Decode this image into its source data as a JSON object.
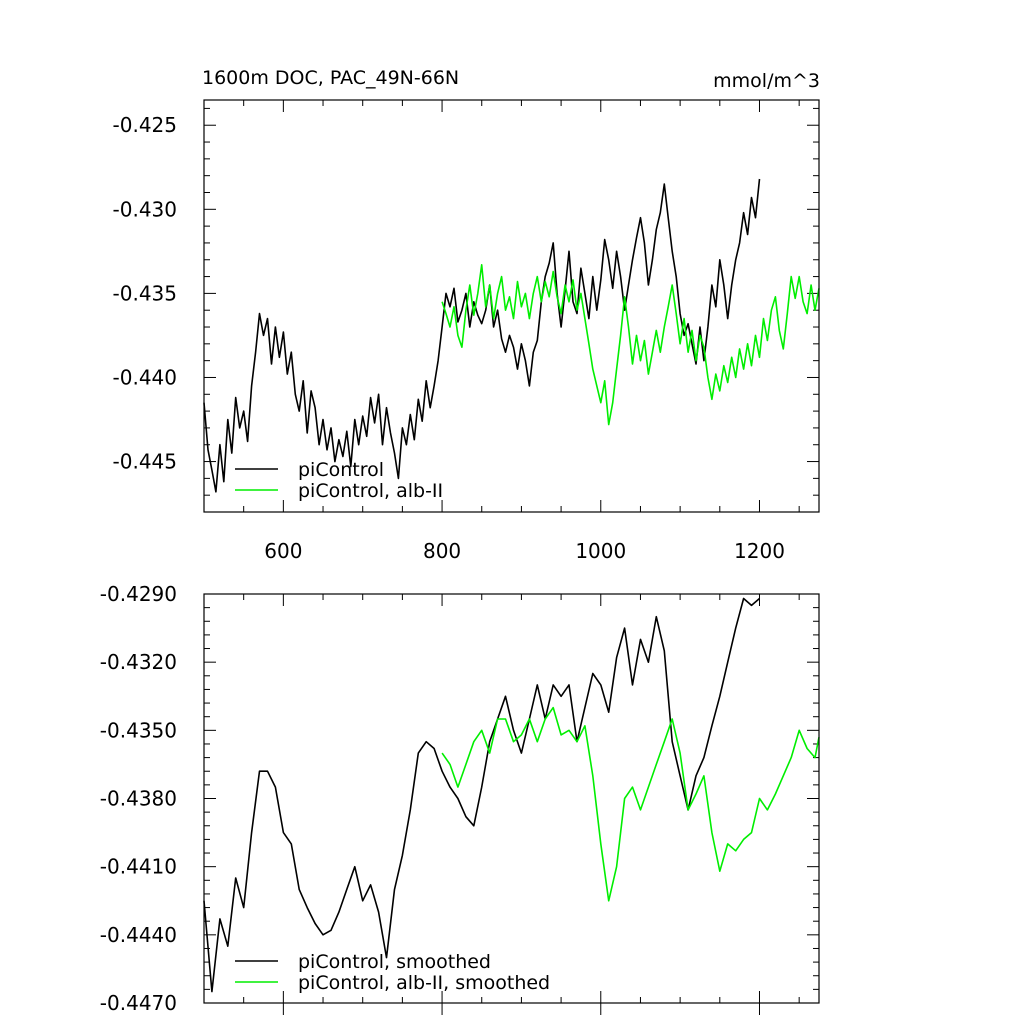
{
  "chart_data": [
    {
      "type": "line",
      "title": "1600m DOC, PAC_49N-66N",
      "units": "mmol/m^3",
      "xlabel": "",
      "ylabel": "",
      "xlim": [
        500,
        1275
      ],
      "ylim": [
        -0.448,
        -0.4235
      ],
      "xticks": [
        600,
        800,
        1000,
        1200
      ],
      "xtick_labels": [
        "600",
        "800",
        "1000",
        "1200"
      ],
      "yticks": [
        -0.425,
        -0.43,
        -0.435,
        -0.44,
        -0.445
      ],
      "ytick_labels": [
        "-0.425",
        "-0.430",
        "-0.435",
        "-0.440",
        "-0.445"
      ],
      "legend": {
        "placement": "bottom-left",
        "entries": [
          "piControl",
          "piControl, alb-II"
        ]
      },
      "series": [
        {
          "name": "piControl",
          "color": "#000000",
          "x": [
            500,
            505,
            510,
            515,
            520,
            525,
            530,
            535,
            540,
            545,
            550,
            555,
            560,
            565,
            570,
            575,
            580,
            585,
            590,
            595,
            600,
            605,
            610,
            615,
            620,
            625,
            630,
            635,
            640,
            645,
            650,
            655,
            660,
            665,
            670,
            675,
            680,
            685,
            690,
            695,
            700,
            705,
            710,
            715,
            720,
            725,
            730,
            735,
            740,
            745,
            750,
            755,
            760,
            765,
            770,
            775,
            780,
            785,
            790,
            795,
            800,
            805,
            810,
            815,
            820,
            825,
            830,
            835,
            840,
            845,
            850,
            855,
            860,
            865,
            870,
            875,
            880,
            885,
            890,
            895,
            900,
            905,
            910,
            915,
            920,
            925,
            930,
            935,
            940,
            945,
            950,
            955,
            960,
            965,
            970,
            975,
            980,
            985,
            990,
            995,
            1000,
            1005,
            1010,
            1015,
            1020,
            1025,
            1030,
            1035,
            1040,
            1045,
            1050,
            1055,
            1060,
            1065,
            1070,
            1075,
            1080,
            1085,
            1090,
            1095,
            1100,
            1105,
            1110,
            1115,
            1120,
            1125,
            1130,
            1135,
            1140,
            1145,
            1150,
            1155,
            1160,
            1165,
            1170,
            1175,
            1180,
            1185,
            1190,
            1195,
            1200
          ],
          "y": [
            -0.4415,
            -0.4443,
            -0.4455,
            -0.4468,
            -0.444,
            -0.4462,
            -0.4425,
            -0.4445,
            -0.4412,
            -0.443,
            -0.442,
            -0.4438,
            -0.4405,
            -0.4385,
            -0.4362,
            -0.4375,
            -0.4365,
            -0.4392,
            -0.437,
            -0.4388,
            -0.4373,
            -0.4398,
            -0.4385,
            -0.441,
            -0.442,
            -0.4402,
            -0.4433,
            -0.4408,
            -0.4418,
            -0.444,
            -0.4425,
            -0.4443,
            -0.443,
            -0.445,
            -0.4437,
            -0.4447,
            -0.4432,
            -0.4453,
            -0.4425,
            -0.444,
            -0.4423,
            -0.4435,
            -0.4412,
            -0.4427,
            -0.441,
            -0.444,
            -0.4418,
            -0.4433,
            -0.4445,
            -0.446,
            -0.443,
            -0.444,
            -0.4422,
            -0.4437,
            -0.4413,
            -0.4426,
            -0.4402,
            -0.4418,
            -0.4405,
            -0.439,
            -0.437,
            -0.435,
            -0.4358,
            -0.4347,
            -0.4367,
            -0.436,
            -0.435,
            -0.437,
            -0.4355,
            -0.4363,
            -0.4368,
            -0.436,
            -0.4345,
            -0.437,
            -0.436,
            -0.4377,
            -0.4385,
            -0.4375,
            -0.4382,
            -0.4395,
            -0.438,
            -0.439,
            -0.4405,
            -0.4385,
            -0.4378,
            -0.4355,
            -0.434,
            -0.4332,
            -0.432,
            -0.435,
            -0.437,
            -0.4348,
            -0.4325,
            -0.4355,
            -0.4362,
            -0.4335,
            -0.435,
            -0.4365,
            -0.434,
            -0.436,
            -0.4342,
            -0.4318,
            -0.433,
            -0.4347,
            -0.4325,
            -0.434,
            -0.436,
            -0.4345,
            -0.433,
            -0.4317,
            -0.4305,
            -0.432,
            -0.4345,
            -0.433,
            -0.4312,
            -0.4302,
            -0.4285,
            -0.4305,
            -0.4325,
            -0.434,
            -0.4362,
            -0.4375,
            -0.4368,
            -0.438,
            -0.4392,
            -0.437,
            -0.439,
            -0.437,
            -0.4345,
            -0.4358,
            -0.433,
            -0.4345,
            -0.4365,
            -0.4345,
            -0.433,
            -0.432,
            -0.4302,
            -0.4315,
            -0.4293,
            -0.4305,
            -0.4282
          ]
        },
        {
          "name": "piControl, alb-II",
          "color": "#00ee00",
          "x": [
            800,
            805,
            810,
            815,
            820,
            825,
            830,
            835,
            840,
            845,
            850,
            855,
            860,
            865,
            870,
            875,
            880,
            885,
            890,
            895,
            900,
            905,
            910,
            915,
            920,
            925,
            930,
            935,
            940,
            945,
            950,
            955,
            960,
            965,
            970,
            975,
            980,
            985,
            990,
            995,
            1000,
            1005,
            1010,
            1015,
            1020,
            1025,
            1030,
            1035,
            1040,
            1045,
            1050,
            1055,
            1060,
            1065,
            1070,
            1075,
            1080,
            1085,
            1090,
            1095,
            1100,
            1105,
            1110,
            1115,
            1120,
            1125,
            1130,
            1135,
            1140,
            1145,
            1150,
            1155,
            1160,
            1165,
            1170,
            1175,
            1180,
            1185,
            1190,
            1195,
            1200,
            1205,
            1210,
            1215,
            1220,
            1225,
            1230,
            1235,
            1240,
            1245,
            1250,
            1255,
            1260,
            1265,
            1270,
            1275
          ],
          "y": [
            -0.4355,
            -0.4362,
            -0.437,
            -0.4358,
            -0.4375,
            -0.4382,
            -0.436,
            -0.4345,
            -0.4363,
            -0.435,
            -0.4333,
            -0.4358,
            -0.4345,
            -0.4365,
            -0.435,
            -0.434,
            -0.436,
            -0.4352,
            -0.4365,
            -0.4343,
            -0.4358,
            -0.435,
            -0.4365,
            -0.435,
            -0.434,
            -0.4355,
            -0.4343,
            -0.4352,
            -0.4337,
            -0.4352,
            -0.4362,
            -0.4345,
            -0.4355,
            -0.4342,
            -0.436,
            -0.435,
            -0.4365,
            -0.438,
            -0.4395,
            -0.4405,
            -0.4415,
            -0.4402,
            -0.4428,
            -0.4415,
            -0.4395,
            -0.4375,
            -0.4352,
            -0.437,
            -0.4392,
            -0.4375,
            -0.439,
            -0.4378,
            -0.4398,
            -0.4385,
            -0.4372,
            -0.4385,
            -0.437,
            -0.4358,
            -0.4345,
            -0.4362,
            -0.438,
            -0.4365,
            -0.4385,
            -0.4372,
            -0.439,
            -0.4375,
            -0.4382,
            -0.44,
            -0.4413,
            -0.4398,
            -0.4408,
            -0.4393,
            -0.4403,
            -0.4388,
            -0.44,
            -0.4383,
            -0.4395,
            -0.438,
            -0.4393,
            -0.4375,
            -0.4388,
            -0.4365,
            -0.4378,
            -0.436,
            -0.4352,
            -0.4372,
            -0.4383,
            -0.4362,
            -0.434,
            -0.4353,
            -0.434,
            -0.4355,
            -0.4362,
            -0.4345,
            -0.436,
            -0.4347
          ]
        }
      ]
    },
    {
      "type": "line",
      "title": "",
      "xlabel": "",
      "ylabel": "",
      "xlim": [
        500,
        1275
      ],
      "ylim": [
        -0.447,
        -0.429
      ],
      "xticks": [
        600,
        800,
        1000,
        1200
      ],
      "xtick_labels": [],
      "yticks": [
        -0.429,
        -0.432,
        -0.435,
        -0.438,
        -0.441,
        -0.444,
        -0.447
      ],
      "ytick_labels": [
        "-0.4290",
        "-0.4320",
        "-0.4350",
        "-0.4380",
        "-0.4410",
        "-0.4440",
        "-0.4470"
      ],
      "legend": {
        "placement": "bottom-left",
        "entries": [
          "piControl, smoothed",
          "piControl, alb-II, smoothed"
        ]
      },
      "series": [
        {
          "name": "piControl, smoothed",
          "color": "#000000",
          "x": [
            500,
            510,
            520,
            530,
            540,
            550,
            560,
            570,
            580,
            590,
            600,
            610,
            620,
            630,
            640,
            650,
            660,
            670,
            680,
            690,
            700,
            710,
            720,
            730,
            740,
            750,
            760,
            770,
            780,
            790,
            800,
            810,
            820,
            830,
            840,
            850,
            860,
            870,
            880,
            890,
            900,
            910,
            920,
            930,
            940,
            950,
            960,
            970,
            980,
            990,
            1000,
            1010,
            1020,
            1030,
            1040,
            1050,
            1060,
            1070,
            1080,
            1090,
            1100,
            1110,
            1120,
            1130,
            1140,
            1150,
            1160,
            1170,
            1180,
            1190,
            1200
          ],
          "y": [
            -0.4425,
            -0.4465,
            -0.4433,
            -0.4445,
            -0.4415,
            -0.4428,
            -0.4395,
            -0.4368,
            -0.4368,
            -0.4375,
            -0.4395,
            -0.44,
            -0.442,
            -0.4428,
            -0.4435,
            -0.444,
            -0.4438,
            -0.443,
            -0.442,
            -0.441,
            -0.4425,
            -0.4418,
            -0.443,
            -0.445,
            -0.442,
            -0.4405,
            -0.4385,
            -0.436,
            -0.4355,
            -0.4358,
            -0.4368,
            -0.4375,
            -0.438,
            -0.4388,
            -0.4392,
            -0.4375,
            -0.4355,
            -0.4345,
            -0.4335,
            -0.435,
            -0.436,
            -0.4345,
            -0.433,
            -0.4345,
            -0.433,
            -0.4335,
            -0.433,
            -0.4355,
            -0.434,
            -0.4325,
            -0.433,
            -0.4342,
            -0.4318,
            -0.4305,
            -0.433,
            -0.431,
            -0.432,
            -0.43,
            -0.4315,
            -0.4355,
            -0.437,
            -0.4385,
            -0.437,
            -0.4362,
            -0.4348,
            -0.4335,
            -0.432,
            -0.4305,
            -0.4292,
            -0.4295,
            -0.4292
          ]
        },
        {
          "name": "piControl, alb-II, smoothed",
          "color": "#00ee00",
          "x": [
            800,
            810,
            820,
            830,
            840,
            850,
            860,
            870,
            880,
            890,
            900,
            910,
            920,
            930,
            940,
            950,
            960,
            970,
            980,
            990,
            1000,
            1010,
            1020,
            1030,
            1040,
            1050,
            1060,
            1070,
            1080,
            1090,
            1100,
            1110,
            1120,
            1130,
            1140,
            1150,
            1160,
            1170,
            1180,
            1190,
            1200,
            1210,
            1220,
            1230,
            1240,
            1250,
            1260,
            1270,
            1275
          ],
          "y": [
            -0.436,
            -0.4365,
            -0.4375,
            -0.4365,
            -0.4355,
            -0.435,
            -0.436,
            -0.4345,
            -0.4345,
            -0.4355,
            -0.4352,
            -0.4345,
            -0.4355,
            -0.4345,
            -0.434,
            -0.4352,
            -0.435,
            -0.4355,
            -0.4348,
            -0.437,
            -0.44,
            -0.4425,
            -0.441,
            -0.438,
            -0.4375,
            -0.4385,
            -0.4375,
            -0.4365,
            -0.4355,
            -0.4345,
            -0.436,
            -0.4385,
            -0.4378,
            -0.437,
            -0.4395,
            -0.4412,
            -0.44,
            -0.4403,
            -0.4398,
            -0.4395,
            -0.438,
            -0.4385,
            -0.4378,
            -0.437,
            -0.4362,
            -0.435,
            -0.4358,
            -0.4362,
            -0.4353
          ]
        }
      ]
    }
  ]
}
